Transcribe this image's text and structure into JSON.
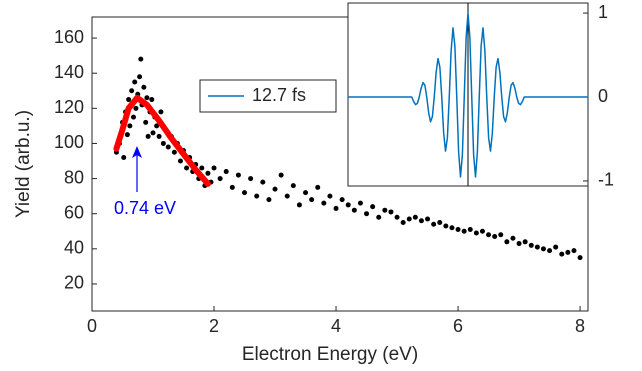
{
  "chart_data": [
    {
      "type": "scatter",
      "xlabel": "Electron Energy (eV)",
      "ylabel": "Yield (arb.u.)",
      "xlim": [
        0,
        8.13
      ],
      "ylim": [
        4.6,
        172
      ],
      "xticks": [
        0,
        2,
        4,
        6,
        8
      ],
      "yticks": [
        20,
        40,
        60,
        80,
        100,
        120,
        140,
        160
      ],
      "series": [
        {
          "color": "#000000",
          "x": [
            0.4,
            0.45,
            0.5,
            0.52,
            0.55,
            0.58,
            0.6,
            0.62,
            0.65,
            0.68,
            0.7,
            0.72,
            0.75,
            0.78,
            0.8,
            0.82,
            0.85,
            0.88,
            0.9,
            0.92,
            0.95,
            0.98,
            1.0,
            1.03,
            1.06,
            1.1,
            1.13,
            1.17,
            1.2,
            1.25,
            1.3,
            1.35,
            1.4,
            1.45,
            1.5,
            1.55,
            1.6,
            1.65,
            1.7,
            1.75,
            1.8,
            1.85,
            1.9,
            1.95,
            2.0,
            2.1,
            2.2,
            2.3,
            2.4,
            2.5,
            2.6,
            2.7,
            2.8,
            2.9,
            3.0,
            3.1,
            3.2,
            3.3,
            3.4,
            3.5,
            3.6,
            3.7,
            3.8,
            3.9,
            4.0,
            4.1,
            4.2,
            4.3,
            4.4,
            4.5,
            4.6,
            4.7,
            4.8,
            4.9,
            5.0,
            5.1,
            5.2,
            5.3,
            5.4,
            5.5,
            5.6,
            5.7,
            5.8,
            5.9,
            6.0,
            6.1,
            6.2,
            6.3,
            6.4,
            6.5,
            6.6,
            6.7,
            6.8,
            6.9,
            7.0,
            7.1,
            7.2,
            7.3,
            7.4,
            7.5,
            7.6,
            7.7,
            7.8,
            7.9,
            8.0
          ],
          "values": [
            95,
            100,
            112,
            92,
            118,
            105,
            125,
            110,
            130,
            115,
            135,
            120,
            128,
            138,
            148,
            122,
            132,
            112,
            126,
            104,
            118,
            125,
            106,
            115,
            110,
            104,
            118,
            100,
            108,
            98,
            104,
            95,
            100,
            90,
            96,
            86,
            92,
            84,
            88,
            80,
            86,
            76,
            83,
            78,
            86,
            80,
            84,
            75,
            82,
            72,
            80,
            70,
            78,
            68,
            74,
            82,
            70,
            76,
            65,
            72,
            68,
            75,
            66,
            70,
            63,
            68,
            65,
            62,
            66,
            60,
            64,
            58,
            62,
            61,
            58,
            55,
            57,
            58,
            56,
            57,
            54,
            55,
            53,
            52,
            51,
            50,
            51,
            49,
            50,
            48,
            47,
            48,
            44,
            46,
            43,
            44,
            42,
            41,
            40,
            39,
            41,
            37,
            38,
            39,
            35
          ]
        },
        {
          "type": "line",
          "color": "#ff0000",
          "x": [
            0.4,
            0.5,
            0.6,
            0.74,
            0.9,
            1.1,
            1.3,
            1.5,
            1.7,
            1.9
          ],
          "values": [
            97,
            108,
            120,
            126,
            122,
            113,
            103,
            94,
            85,
            77
          ]
        }
      ],
      "annotations": [
        {
          "text": "0.74 eV",
          "color": "#0000ff"
        }
      ]
    },
    {
      "type": "line",
      "xlim": [
        -8,
        8
      ],
      "ylim": [
        -1.06,
        1.12
      ],
      "yticks": [
        -1,
        0,
        1
      ],
      "vlines": [
        0
      ],
      "series": [
        {
          "name": "12.7 fs",
          "color": "#0072bd",
          "x": [
            -8,
            -3.75,
            -3.625,
            -3.5,
            -3.375,
            -3.25,
            -3.125,
            -3,
            -2.875,
            -2.75,
            -2.625,
            -2.5,
            -2.375,
            -2.25,
            -2.125,
            -2,
            -1.875,
            -1.75,
            -1.625,
            -1.5,
            -1.375,
            -1.25,
            -1.125,
            -1,
            -0.875,
            -0.75,
            -0.625,
            -0.5,
            -0.375,
            -0.25,
            -0.125,
            0,
            0.125,
            0.25,
            0.375,
            0.5,
            0.625,
            0.75,
            0.875,
            1,
            1.125,
            1.25,
            1.375,
            1.5,
            1.625,
            1.75,
            1.875,
            2,
            2.125,
            2.25,
            2.375,
            2.5,
            2.625,
            2.75,
            2.875,
            3,
            3.125,
            3.25,
            3.375,
            3.5,
            3.625,
            3.75,
            8
          ],
          "values": [
            0,
            0,
            -0.054,
            -0.091,
            -0.076,
            0,
            0.105,
            0.172,
            0.141,
            0,
            -0.184,
            -0.295,
            -0.235,
            0,
            0.293,
            0.458,
            0.356,
            0,
            -0.422,
            -0.644,
            -0.489,
            0,
            0.552,
            0.823,
            0.609,
            0,
            -0.655,
            -0.952,
            -0.688,
            0,
            0.705,
            1,
            0.705,
            0,
            -0.688,
            -0.952,
            -0.655,
            0,
            0.609,
            0.823,
            0.552,
            0,
            -0.489,
            -0.644,
            -0.422,
            0,
            0.356,
            0.458,
            0.293,
            0,
            -0.235,
            -0.295,
            -0.184,
            0,
            0.141,
            0.172,
            0.105,
            0,
            -0.076,
            -0.091,
            -0.054,
            0,
            0
          ]
        }
      ]
    }
  ]
}
